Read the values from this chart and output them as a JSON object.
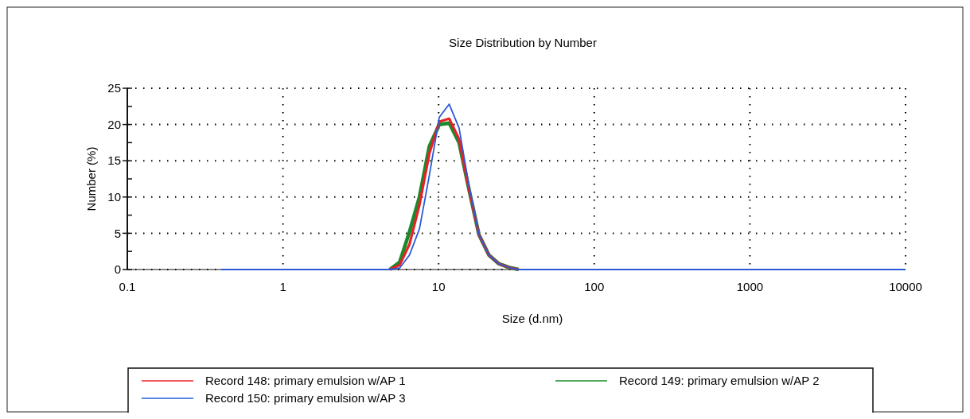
{
  "chart_data": {
    "type": "line",
    "title": "Size Distribution by Number",
    "xlabel": "Size (d.nm)",
    "ylabel": "Number (%)",
    "log": "x",
    "xlim": [
      0.1,
      10000
    ],
    "xticks": [
      0.1,
      1,
      10,
      100,
      1000,
      10000
    ],
    "ylim": [
      0,
      25
    ],
    "yticks": [
      0,
      5,
      10,
      15,
      20,
      25
    ],
    "grid": true,
    "legend": "bottom",
    "line_style": "solid",
    "marker": "none",
    "x": [
      0.4,
      1,
      4.85,
      5.615,
      6.503,
      7.531,
      8.721,
      10.1,
      11.7,
      13.54,
      15.69,
      18.17,
      21.04,
      24.36,
      28.21,
      32.67,
      100,
      1000,
      10000
    ],
    "series": [
      {
        "name": "Record 148: primary emulsion w/AP 1",
        "color": "#e8202a",
        "values": [
          null,
          null,
          0,
          0.6,
          3.5,
          8.9,
          16,
          20.4,
          20.8,
          18,
          11,
          4.8,
          2,
          0.8,
          0.3,
          0,
          null,
          null,
          null
        ]
      },
      {
        "name": "Record 149: primary emulsion w/AP 2",
        "color": "#1a8a2a",
        "values": [
          null,
          null,
          0,
          1,
          5.2,
          10,
          17,
          20,
          20.2,
          17.5,
          11,
          4.8,
          2,
          0.8,
          0.3,
          0,
          null,
          null,
          null
        ]
      },
      {
        "name": "Record 150: primary emulsion w/AP 3",
        "color": "#2a5ad8",
        "values": [
          0,
          0,
          0,
          0.2,
          2,
          5.6,
          13,
          21,
          22.8,
          19.5,
          11.5,
          4.8,
          2,
          0.8,
          0.3,
          0,
          0,
          0,
          0
        ]
      }
    ]
  }
}
